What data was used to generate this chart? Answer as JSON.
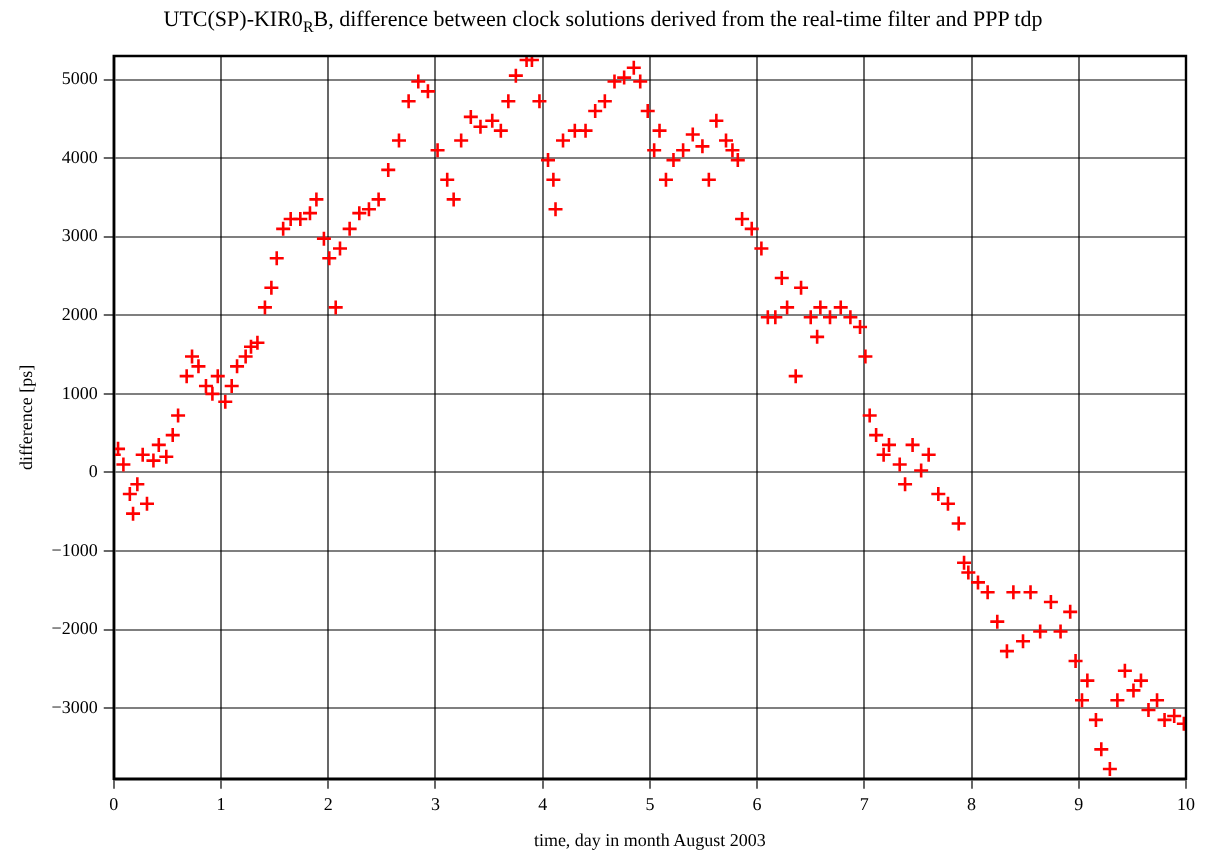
{
  "chart_data": {
    "type": "scatter",
    "title": "UTC(SP)-KIR0$_{R}$B, difference between clock solutions derived from the real-time filter and PPP tdp",
    "xlabel": "time, day in month August 2003",
    "ylabel": "difference [ps]",
    "marker": "cross",
    "grid": true,
    "xlim": [
      0,
      10
    ],
    "xticks": [
      0,
      1,
      2,
      3,
      4,
      5,
      6,
      7,
      8,
      9,
      10
    ],
    "ylim": [
      -3900,
      5300
    ],
    "yticks": [
      -3000,
      -2000,
      -1000,
      0,
      1000,
      2000,
      3000,
      4000,
      5000
    ],
    "series": [
      {
        "color": "#ff0000",
        "x": [
          0.0,
          0.04,
          0.09,
          0.15,
          0.18,
          0.22,
          0.27,
          0.31,
          0.37,
          0.42,
          0.49,
          0.55,
          0.6,
          0.68,
          0.73,
          0.79,
          0.86,
          0.92,
          0.97,
          1.04,
          1.1,
          1.15,
          1.23,
          1.28,
          1.34,
          1.41,
          1.47,
          1.52,
          1.58,
          1.65,
          1.74,
          1.83,
          1.89,
          1.96,
          2.01,
          2.07,
          2.11,
          2.2,
          2.29,
          2.38,
          2.47,
          2.56,
          2.66,
          2.75,
          2.84,
          2.93,
          3.02,
          3.11,
          3.17,
          3.24,
          3.33,
          3.42,
          3.53,
          3.61,
          3.68,
          3.75,
          3.85,
          3.9,
          3.97,
          4.05,
          4.1,
          4.12,
          4.19,
          4.3,
          4.4,
          4.49,
          4.58,
          4.67,
          4.76,
          4.85,
          4.91,
          4.98,
          5.04,
          5.09,
          5.15,
          5.22,
          5.31,
          5.4,
          5.49,
          5.55,
          5.62,
          5.71,
          5.77,
          5.82,
          5.86,
          5.95,
          6.04,
          6.1,
          6.17,
          6.23,
          6.28,
          6.36,
          6.41,
          6.5,
          6.56,
          6.59,
          6.68,
          6.78,
          6.87,
          6.96,
          7.01,
          7.05,
          7.11,
          7.18,
          7.23,
          7.33,
          7.38,
          7.45,
          7.53,
          7.6,
          7.69,
          7.78,
          7.88,
          7.93,
          7.97,
          8.06,
          8.15,
          8.24,
          8.33,
          8.39,
          8.48,
          8.55,
          8.64,
          8.74,
          8.83,
          8.92,
          8.97,
          9.03,
          9.08,
          9.16,
          9.21,
          9.29,
          9.36,
          9.43,
          9.51,
          9.58,
          9.65,
          9.73,
          9.8,
          9.89,
          9.98
        ],
        "values": [
          225,
          300,
          100,
          -275,
          -525,
          -150,
          225,
          -400,
          150,
          350,
          200,
          475,
          725,
          1225,
          1475,
          1350,
          1100,
          1000,
          1225,
          900,
          1100,
          1350,
          1475,
          1600,
          1650,
          2100,
          2350,
          2725,
          3100,
          3225,
          3225,
          3300,
          3475,
          2975,
          2725,
          2100,
          2850,
          3100,
          3300,
          3350,
          3475,
          3850,
          4225,
          4725,
          4975,
          4850,
          4100,
          3725,
          3475,
          4225,
          4525,
          4400,
          4475,
          4350,
          4725,
          5050,
          5250,
          5250,
          4725,
          3975,
          3725,
          3350,
          4225,
          4350,
          4350,
          4600,
          4725,
          4975,
          5025,
          5150,
          4975,
          4600,
          4100,
          4350,
          3725,
          3975,
          4100,
          4300,
          4150,
          3725,
          4475,
          4225,
          4100,
          3975,
          3225,
          3100,
          2850,
          1975,
          1975,
          2475,
          2100,
          1225,
          2350,
          1975,
          1725,
          2100,
          1975,
          2100,
          1975,
          1850,
          1475,
          725,
          475,
          225,
          350,
          100,
          -150,
          350,
          25,
          225,
          -275,
          -400,
          -650,
          -1150,
          -1275,
          -1400,
          -1525,
          -1900,
          -2275,
          -1525,
          -2150,
          -1525,
          -2025,
          -1650,
          -2025,
          -1775,
          -2400,
          -2900,
          -2650,
          -3150,
          -3525,
          -3775,
          -2900,
          -2525,
          -2775,
          -2650,
          -3025,
          -2900,
          -3150,
          -3100,
          -3200
        ]
      }
    ]
  }
}
